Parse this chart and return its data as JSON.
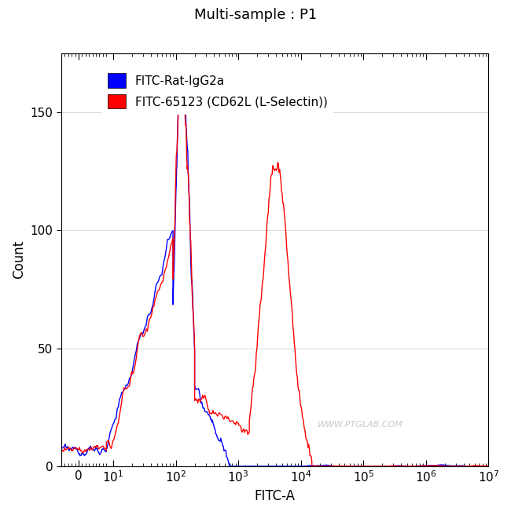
{
  "title": "Multi-sample : P1",
  "xlabel": "FITC-A",
  "ylabel": "Count",
  "ylim": [
    0,
    175
  ],
  "yticks": [
    0,
    50,
    100,
    150
  ],
  "legend_labels": [
    "FITC-Rat-IgG2a",
    "FITC-65123 (CD62L (L-Selectin))"
  ],
  "legend_colors": [
    "#0000FF",
    "#FF0000"
  ],
  "watermark": "WWW.PTGLAB.COM",
  "background_color": "#FFFFFF",
  "blue_color": "#0000FF",
  "red_color": "#FF0000",
  "title_fontsize": 13,
  "axis_label_fontsize": 12,
  "tick_fontsize": 11,
  "legend_fontsize": 11,
  "linthresh": 10,
  "linscale": 0.5
}
